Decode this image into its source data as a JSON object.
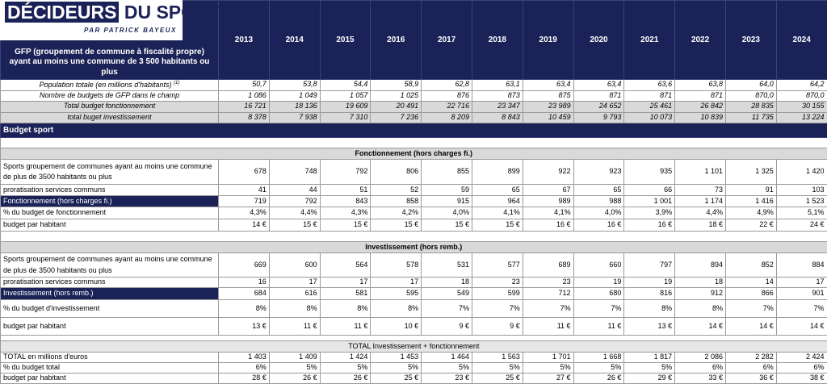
{
  "logo": {
    "part1": "DÉCIDEURS",
    "part2": "DU SPORT",
    "sub": "PAR PATRICK BAYEUX"
  },
  "header": {
    "label": "GFP (groupement de commune à fiscalité propre)  ayant au moins une commune de 3 500 habitants  ou plus",
    "years": [
      "2013",
      "2014",
      "2015",
      "2016",
      "2017",
      "2018",
      "2019",
      "2020",
      "2021",
      "2022",
      "2023",
      "2024"
    ]
  },
  "context": [
    {
      "label": "Population totale (en millions d'habitants)",
      "sup": "(1)",
      "values": [
        "50,7",
        "53,8",
        "54,4",
        "58,9",
        "62,8",
        "63,1",
        "63,4",
        "63,4",
        "63,6",
        "63,8",
        "64,0",
        "64,2"
      ]
    },
    {
      "label": "Nombre de budgets de GFP dans le champ",
      "values": [
        "1 086",
        "1 049",
        "1 057",
        "1 025",
        "876",
        "873",
        "875",
        "871",
        "871",
        "871",
        "870,0",
        "870,0"
      ]
    },
    {
      "label": "Total budget fonctionnement",
      "values": [
        "16 721",
        "18 136",
        "19 609",
        "20 491",
        "22 716",
        "23 347",
        "23 989",
        "24 652",
        "25 461",
        "26 842",
        "28 835",
        "30 155"
      ]
    },
    {
      "label": "total buget investissement",
      "values": [
        "8 378",
        "7 938",
        "7 310",
        "7 236",
        "8 209",
        "8 843",
        "10 459",
        "9 793",
        "10 073",
        "10 839",
        "11 735",
        "13 224"
      ]
    }
  ],
  "budget_sport_title": "Budget sport",
  "fonctionnement": {
    "title": "Fonctionnement (hors charges fi.)",
    "rows": [
      {
        "label": "Sports groupement de communes ayant au moins une commune de plus de 3500 habitants ou plus",
        "values": [
          "678",
          "748",
          "792",
          "806",
          "855",
          "899",
          "922",
          "923",
          "935",
          "1 101",
          "1 325",
          "1 420"
        ]
      },
      {
        "label": "proratisation services communs",
        "values": [
          "41",
          "44",
          "51",
          "52",
          "59",
          "65",
          "67",
          "65",
          "66",
          "73",
          "91",
          "103"
        ]
      },
      {
        "label": "Fonctionnement (hors charges fi.)",
        "values": [
          "719",
          "792",
          "843",
          "858",
          "915",
          "964",
          "989",
          "988",
          "1 001",
          "1 174",
          "1 416",
          "1 523"
        ]
      },
      {
        "label": "% du budget de fonctionnement",
        "values": [
          "4,3%",
          "4,4%",
          "4,3%",
          "4,2%",
          "4,0%",
          "4,1%",
          "4,1%",
          "4,0%",
          "3,9%",
          "4,4%",
          "4,9%",
          "5,1%"
        ]
      },
      {
        "label": "budget par habitant",
        "values": [
          "14 €",
          "15 €",
          "15 €",
          "15 €",
          "15 €",
          "15 €",
          "16 €",
          "16 €",
          "16 €",
          "18 €",
          "22 €",
          "24 €"
        ]
      }
    ]
  },
  "investissement": {
    "title": "Investissement (hors remb.)",
    "rows": [
      {
        "label": "Sports groupement de communes ayant au moins une commune de plus de 3500 habitants ou plus",
        "values": [
          "669",
          "600",
          "564",
          "578",
          "531",
          "577",
          "689",
          "660",
          "797",
          "894",
          "852",
          "884"
        ]
      },
      {
        "label": "proratisation services communs",
        "values": [
          "16",
          "17",
          "17",
          "17",
          "18",
          "23",
          "23",
          "19",
          "19",
          "18",
          "14",
          "17"
        ]
      },
      {
        "label": "Investissement (hors remb.)",
        "values": [
          "684",
          "616",
          "581",
          "595",
          "549",
          "599",
          "712",
          "680",
          "816",
          "912",
          "866",
          "901"
        ]
      },
      {
        "label": "% du budget d'investissement",
        "values": [
          "8%",
          "8%",
          "8%",
          "8%",
          "7%",
          "7%",
          "7%",
          "7%",
          "8%",
          "8%",
          "7%",
          "7%"
        ]
      },
      {
        "label": "budget par habitant",
        "values": [
          "13 €",
          "11 €",
          "11 €",
          "10 €",
          "9 €",
          "9 €",
          "11 €",
          "11 €",
          "13 €",
          "14 €",
          "14 €",
          "14 €"
        ]
      }
    ]
  },
  "total": {
    "title": "TOTAL Investissement + fonctionnement",
    "rows": [
      {
        "label": "TOTAL  en millions d'euros",
        "values": [
          "1 403",
          "1 409",
          "1 424",
          "1 453",
          "1 464",
          "1 563",
          "1 701",
          "1 668",
          "1 817",
          "2 086",
          "2 282",
          "2 424"
        ]
      },
      {
        "label": "% du budget total",
        "values": [
          "6%",
          "5%",
          "5%",
          "5%",
          "5%",
          "5%",
          "5%",
          "5%",
          "5%",
          "6%",
          "6%",
          "6%"
        ]
      },
      {
        "label": "budget par habitant",
        "values": [
          "28 €",
          "26 €",
          "26 €",
          "25 €",
          "23 €",
          "25 €",
          "27 €",
          "26 €",
          "29 €",
          "33 €",
          "36 €",
          "38 €"
        ]
      }
    ]
  }
}
